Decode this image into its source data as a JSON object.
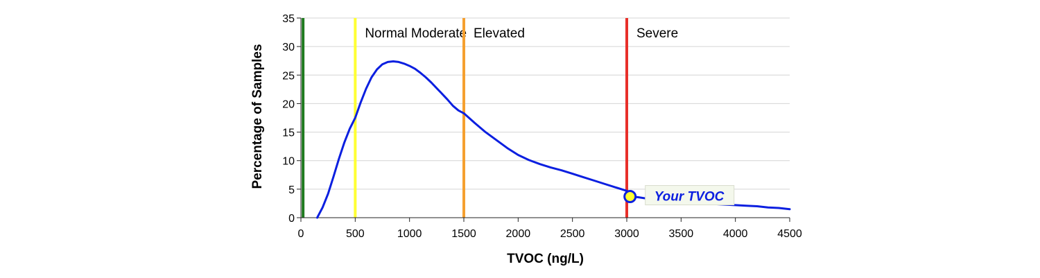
{
  "chart_data": {
    "type": "line",
    "title": "",
    "xlabel": "TVOC (ng/L)",
    "ylabel": "Percentage of Samples",
    "xlim": [
      0,
      4500
    ],
    "ylim": [
      0,
      35
    ],
    "xticks": [
      0,
      500,
      1000,
      1500,
      2000,
      2500,
      3000,
      3500,
      4000,
      4500
    ],
    "yticks": [
      0,
      5,
      10,
      15,
      20,
      25,
      30,
      35
    ],
    "grid": "horizontal",
    "series": [
      {
        "color": "#0b1fe0",
        "x": [
          150,
          200,
          250,
          300,
          350,
          400,
          450,
          500,
          550,
          600,
          650,
          700,
          750,
          800,
          850,
          900,
          950,
          1000,
          1050,
          1100,
          1150,
          1200,
          1250,
          1300,
          1350,
          1400,
          1450,
          1500,
          1600,
          1700,
          1800,
          1900,
          2000,
          2100,
          2200,
          2300,
          2400,
          2500,
          2600,
          2700,
          2800,
          2900,
          3000,
          3030,
          3100,
          3200,
          3300,
          3400,
          3500,
          3600,
          3700,
          3800,
          3900,
          4000,
          4100,
          4200,
          4300,
          4400,
          4500
        ],
        "y": [
          0,
          1.8,
          4.2,
          7.2,
          10.3,
          13.2,
          15.6,
          17.5,
          20.2,
          22.6,
          24.6,
          26.0,
          26.9,
          27.3,
          27.4,
          27.3,
          27.0,
          26.6,
          26.1,
          25.4,
          24.6,
          23.7,
          22.7,
          21.7,
          20.7,
          19.6,
          18.8,
          18.3,
          16.6,
          15.0,
          13.6,
          12.2,
          11.0,
          10.1,
          9.4,
          8.8,
          8.3,
          7.7,
          7.1,
          6.5,
          5.9,
          5.3,
          4.7,
          3.7,
          3.6,
          3.3,
          3.1,
          2.9,
          2.8,
          2.6,
          2.5,
          2.4,
          2.3,
          2.2,
          2.1,
          2.0,
          1.8,
          1.7,
          1.5
        ]
      }
    ],
    "thresholds": [
      {
        "x": 20,
        "color": "#1f7a1f"
      },
      {
        "x": 500,
        "color": "#ffff33",
        "label": "Normal Moderate"
      },
      {
        "x": 1500,
        "color": "#f5a030",
        "label": "Elevated"
      },
      {
        "x": 3000,
        "color": "#e8302a",
        "label": "Severe"
      }
    ],
    "marker": {
      "x": 3030,
      "y": 3.7,
      "label": "Your TVOC",
      "fill": "#ffff33",
      "stroke": "#0b1fe0",
      "label_color": "#0b1fe0",
      "label_bg": "#f4f8ec"
    }
  }
}
